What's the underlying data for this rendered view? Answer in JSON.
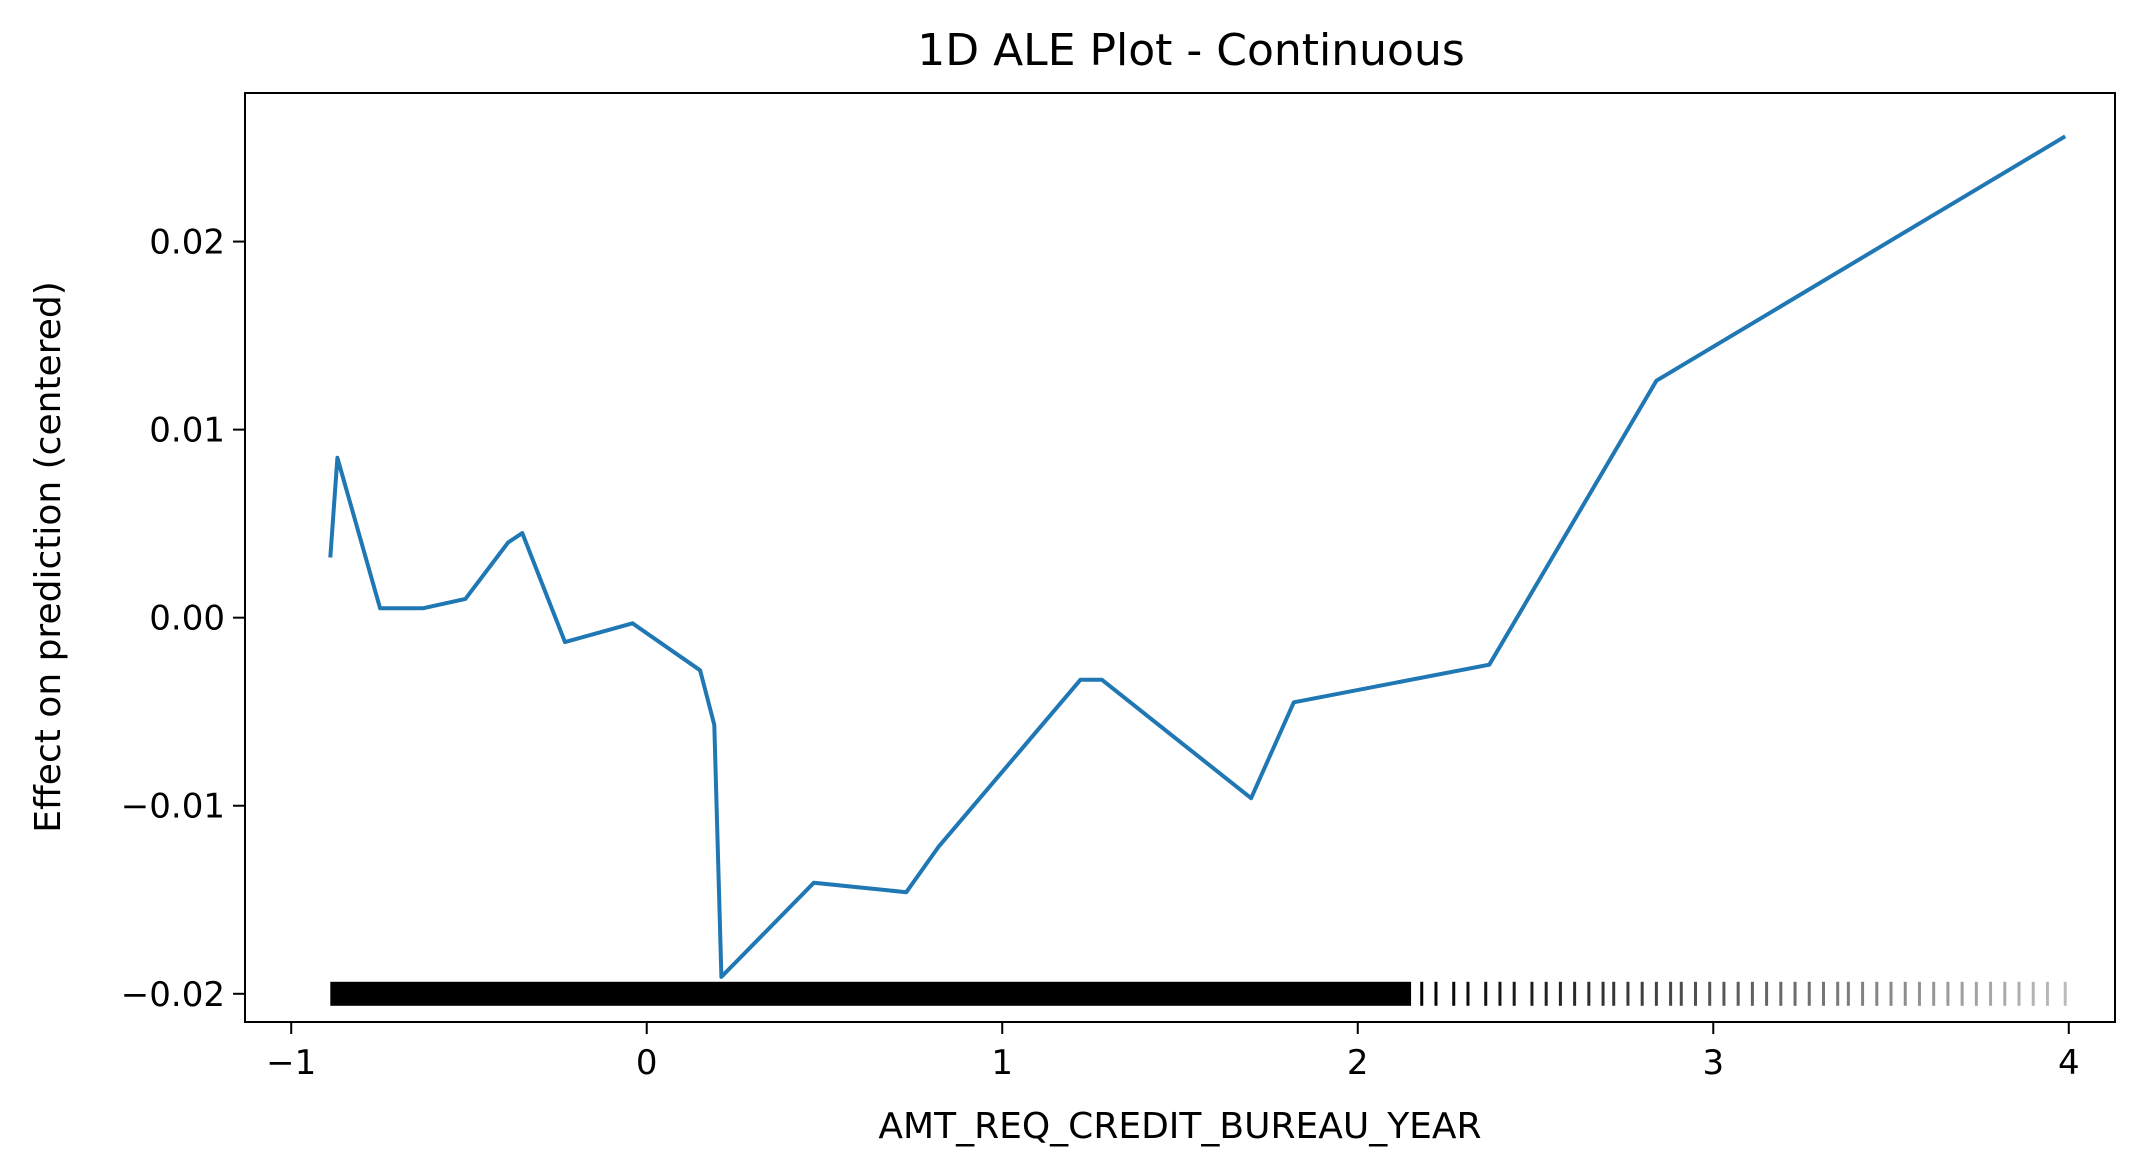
{
  "chart_data": {
    "type": "line",
    "title": "1D ALE Plot - Continuous",
    "xlabel": "AMT_REQ_CREDIT_BUREAU_YEAR",
    "ylabel": "Effect on prediction (centered)",
    "xlim": [
      -1.13,
      4.13
    ],
    "ylim": [
      -0.0215,
      0.0279
    ],
    "xticks": [
      {
        "value": -1,
        "label": "−1"
      },
      {
        "value": 0,
        "label": "0"
      },
      {
        "value": 1,
        "label": "1"
      },
      {
        "value": 2,
        "label": "2"
      },
      {
        "value": 3,
        "label": "3"
      },
      {
        "value": 4,
        "label": "4"
      }
    ],
    "yticks": [
      {
        "value": -0.02,
        "label": "−0.02"
      },
      {
        "value": -0.01,
        "label": "−0.01"
      },
      {
        "value": 0.0,
        "label": "0.00"
      },
      {
        "value": 0.01,
        "label": "0.01"
      },
      {
        "value": 0.02,
        "label": "0.02"
      }
    ],
    "grid": false,
    "legend": "none",
    "series": [
      {
        "color": "#1f77b4",
        "x": [
          -0.89,
          -0.87,
          -0.75,
          -0.63,
          -0.51,
          -0.39,
          -0.35,
          -0.23,
          -0.04,
          0.15,
          0.19,
          0.21,
          0.47,
          0.73,
          0.82,
          1.22,
          1.28,
          1.7,
          1.82,
          2.37,
          2.84,
          3.99
        ],
        "y": [
          0.0032,
          0.0085,
          0.0005,
          0.0005,
          0.001,
          0.004,
          0.0045,
          -0.0013,
          -0.0003,
          -0.0028,
          -0.0057,
          -0.0191,
          -0.0141,
          -0.0146,
          -0.0122,
          -0.0033,
          -0.0033,
          -0.0096,
          -0.0045,
          -0.0025,
          0.0126,
          0.0256
        ]
      }
    ],
    "rug": {
      "y": -0.02,
      "color": "#000000",
      "dense_range": [
        -0.89,
        2.15
      ],
      "x": [
        2.18,
        2.22,
        2.27,
        2.31,
        2.36,
        2.4,
        2.44,
        2.49,
        2.53,
        2.57,
        2.61,
        2.65,
        2.69,
        2.72,
        2.76,
        2.8,
        2.84,
        2.88,
        2.91,
        2.95,
        2.99,
        3.03,
        3.07,
        3.11,
        3.15,
        3.19,
        3.23,
        3.27,
        3.31,
        3.35,
        3.38,
        3.42,
        3.46,
        3.5,
        3.54,
        3.58,
        3.62,
        3.66,
        3.7,
        3.74,
        3.78,
        3.82,
        3.86,
        3.9,
        3.94,
        3.99
      ]
    }
  }
}
